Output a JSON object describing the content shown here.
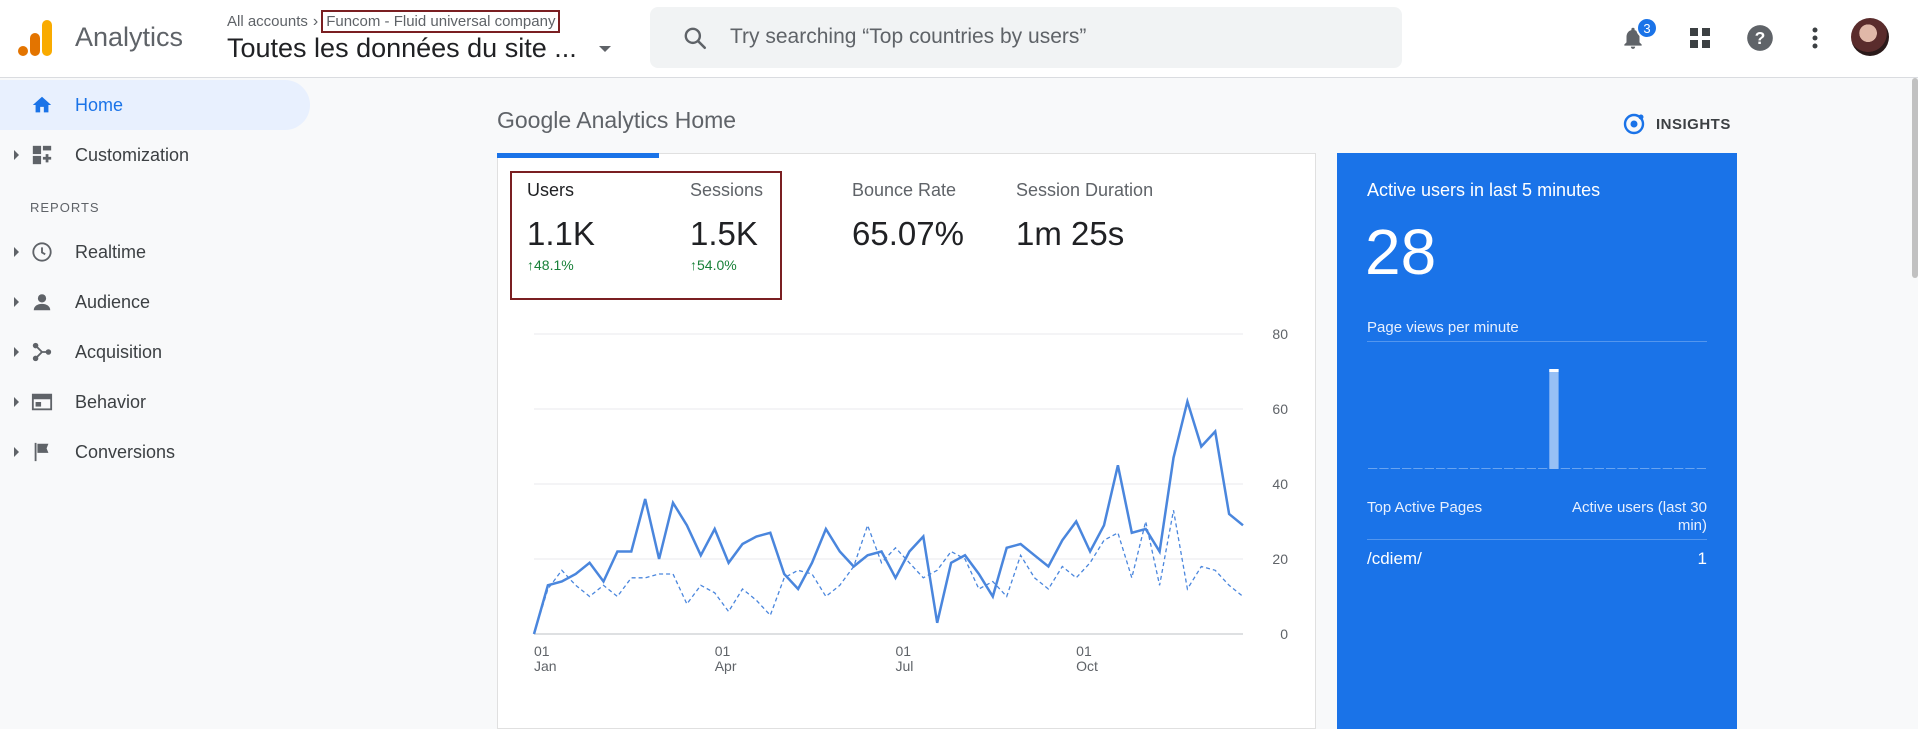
{
  "header": {
    "product": "Analytics",
    "breadcrumb_root": "All accounts",
    "breadcrumb_account": "Funcom - Fluid universal company",
    "property": "Toutes les données du site ...",
    "search_placeholder": "Try searching “Top countries by users”",
    "notification_count": "3"
  },
  "sidebar": {
    "reports_label": "REPORTS",
    "items": [
      {
        "label": "Home",
        "icon": "home-icon"
      },
      {
        "label": "Customization",
        "icon": "dashboard-icon"
      },
      {
        "label": "Realtime",
        "icon": "clock-icon"
      },
      {
        "label": "Audience",
        "icon": "person-icon"
      },
      {
        "label": "Acquisition",
        "icon": "acquisition-icon"
      },
      {
        "label": "Behavior",
        "icon": "behavior-icon"
      },
      {
        "label": "Conversions",
        "icon": "flag-icon"
      }
    ]
  },
  "main": {
    "title": "Google Analytics Home",
    "insights_label": "INSIGHTS",
    "metrics": [
      {
        "label": "Users",
        "value": "1.1K",
        "change": "48.1%"
      },
      {
        "label": "Sessions",
        "value": "1.5K",
        "change": "54.0%"
      },
      {
        "label": "Bounce Rate",
        "value": "65.07%",
        "change": ""
      },
      {
        "label": "Session Duration",
        "value": "1m 25s",
        "change": ""
      }
    ]
  },
  "realtime": {
    "title": "Active users in last 5 minutes",
    "value": "28",
    "pageviews_label": "Page views per minute",
    "top_pages_label": "Top Active Pages",
    "active_users_label": "Active users (last 30 min)",
    "pages": [
      {
        "path": "/cdiem/",
        "count": "1"
      }
    ],
    "pageviews": [
      0,
      0,
      0,
      0,
      0,
      0,
      0,
      0,
      0,
      0,
      0,
      0,
      0,
      0,
      0,
      0,
      1,
      0,
      0,
      0,
      0,
      0,
      0,
      0,
      0,
      0,
      0,
      0,
      0,
      0
    ]
  },
  "chart_data": {
    "type": "line",
    "x_tick_labels": [
      [
        "01",
        "Jan"
      ],
      [
        "01",
        "Apr"
      ],
      [
        "01",
        "Jul"
      ],
      [
        "01",
        "Oct"
      ]
    ],
    "x_tick_index": [
      0,
      13,
      26,
      39
    ],
    "ylim": [
      0,
      80
    ],
    "y_ticks": [
      0,
      20,
      40,
      60,
      80
    ],
    "series": [
      {
        "style": "solid",
        "values": [
          0,
          13,
          14,
          16,
          19,
          14,
          22,
          22,
          36,
          20,
          35,
          29,
          21,
          28,
          19,
          24,
          26,
          27,
          16,
          12,
          19,
          28,
          22,
          18,
          21,
          22,
          15,
          22,
          26,
          3,
          19,
          21,
          16,
          10,
          23,
          24,
          21,
          18,
          25,
          30,
          22,
          29,
          45,
          27,
          28,
          22,
          47,
          62,
          50,
          54,
          32,
          29
        ]
      },
      {
        "style": "dashed",
        "values": [
          0,
          12,
          17,
          13,
          10,
          13,
          10,
          15,
          15,
          16,
          16,
          8,
          13,
          11,
          6,
          12,
          9,
          5,
          15,
          17,
          16,
          10,
          13,
          18,
          29,
          19,
          23,
          19,
          15,
          17,
          22,
          20,
          12,
          14,
          10,
          21,
          15,
          12,
          18,
          15,
          19,
          25,
          27,
          15,
          30,
          13,
          33,
          12,
          18,
          17,
          13,
          10
        ]
      }
    ]
  }
}
